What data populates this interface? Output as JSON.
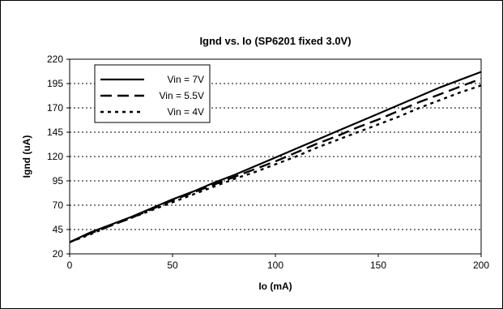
{
  "chart_data": {
    "type": "line",
    "title": "Ignd vs. Io (SP6201 fixed 3.0V)",
    "xlabel": "Io (mA)",
    "ylabel": "Ignd (uA)",
    "xlim": [
      0,
      200
    ],
    "ylim": [
      20,
      220
    ],
    "xticks": [
      "0",
      "50",
      "100",
      "150",
      "200"
    ],
    "yticks": [
      "20",
      "45",
      "70",
      "95",
      "120",
      "145",
      "170",
      "195",
      "220"
    ],
    "grid": "horizontal dotted",
    "legend_placement": "top-left",
    "series": [
      {
        "name": "Vin = 7V",
        "style": "solid",
        "x": [
          0,
          10,
          20,
          30,
          40,
          50,
          60,
          70,
          80,
          90,
          100,
          110,
          120,
          130,
          140,
          150,
          160,
          170,
          180,
          190,
          200
        ],
        "y": [
          32,
          42,
          50,
          58,
          67,
          76,
          84,
          93,
          101,
          110,
          119,
          128,
          137,
          146,
          155,
          164,
          173,
          182,
          191,
          199,
          207
        ]
      },
      {
        "name": "Vin = 5.5V",
        "style": "dashed",
        "x": [
          0,
          10,
          20,
          30,
          40,
          50,
          60,
          70,
          80,
          90,
          100,
          110,
          120,
          130,
          140,
          150,
          160,
          170,
          180,
          190,
          200
        ],
        "y": [
          32,
          41,
          49,
          57,
          66,
          75,
          83,
          91,
          99,
          107,
          115,
          124,
          133,
          141,
          150,
          158,
          167,
          176,
          184,
          192,
          200
        ]
      },
      {
        "name": "Vin = 4V",
        "style": "dotted",
        "x": [
          0,
          10,
          20,
          30,
          40,
          50,
          60,
          70,
          80,
          90,
          100,
          110,
          120,
          130,
          140,
          150,
          160,
          170,
          180,
          190,
          200
        ],
        "y": [
          32,
          40,
          49,
          57,
          65,
          73,
          81,
          89,
          97,
          104,
          112,
          120,
          129,
          137,
          145,
          153,
          161,
          170,
          178,
          186,
          193
        ]
      }
    ]
  }
}
